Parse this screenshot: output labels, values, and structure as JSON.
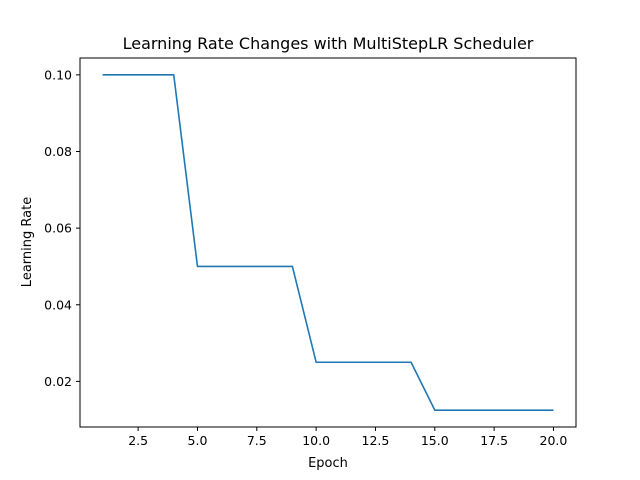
{
  "chart_data": {
    "type": "line",
    "title": "Learning Rate Changes with MultiStepLR Scheduler",
    "xlabel": "Epoch",
    "ylabel": "Learning Rate",
    "xlim": [
      0.05,
      20.95
    ],
    "ylim": [
      0.0081,
      0.1044
    ],
    "xticks": [
      2.5,
      5.0,
      7.5,
      10.0,
      12.5,
      15.0,
      17.5,
      20.0
    ],
    "xtick_labels": [
      "2.5",
      "5.0",
      "7.5",
      "10.0",
      "12.5",
      "15.0",
      "17.5",
      "20.0"
    ],
    "yticks": [
      0.02,
      0.04,
      0.06,
      0.08,
      0.1
    ],
    "ytick_labels": [
      "0.02",
      "0.04",
      "0.06",
      "0.08",
      "0.10"
    ],
    "grid": false,
    "series": [
      {
        "color": "#1f77b4",
        "x": [
          1,
          2,
          3,
          4,
          5,
          6,
          7,
          8,
          9,
          10,
          11,
          12,
          13,
          14,
          15,
          16,
          17,
          18,
          19,
          20
        ],
        "y": [
          0.1,
          0.1,
          0.1,
          0.1,
          0.05,
          0.05,
          0.05,
          0.05,
          0.05,
          0.025,
          0.025,
          0.025,
          0.025,
          0.025,
          0.0125,
          0.0125,
          0.0125,
          0.0125,
          0.0125,
          0.0125
        ]
      }
    ]
  }
}
